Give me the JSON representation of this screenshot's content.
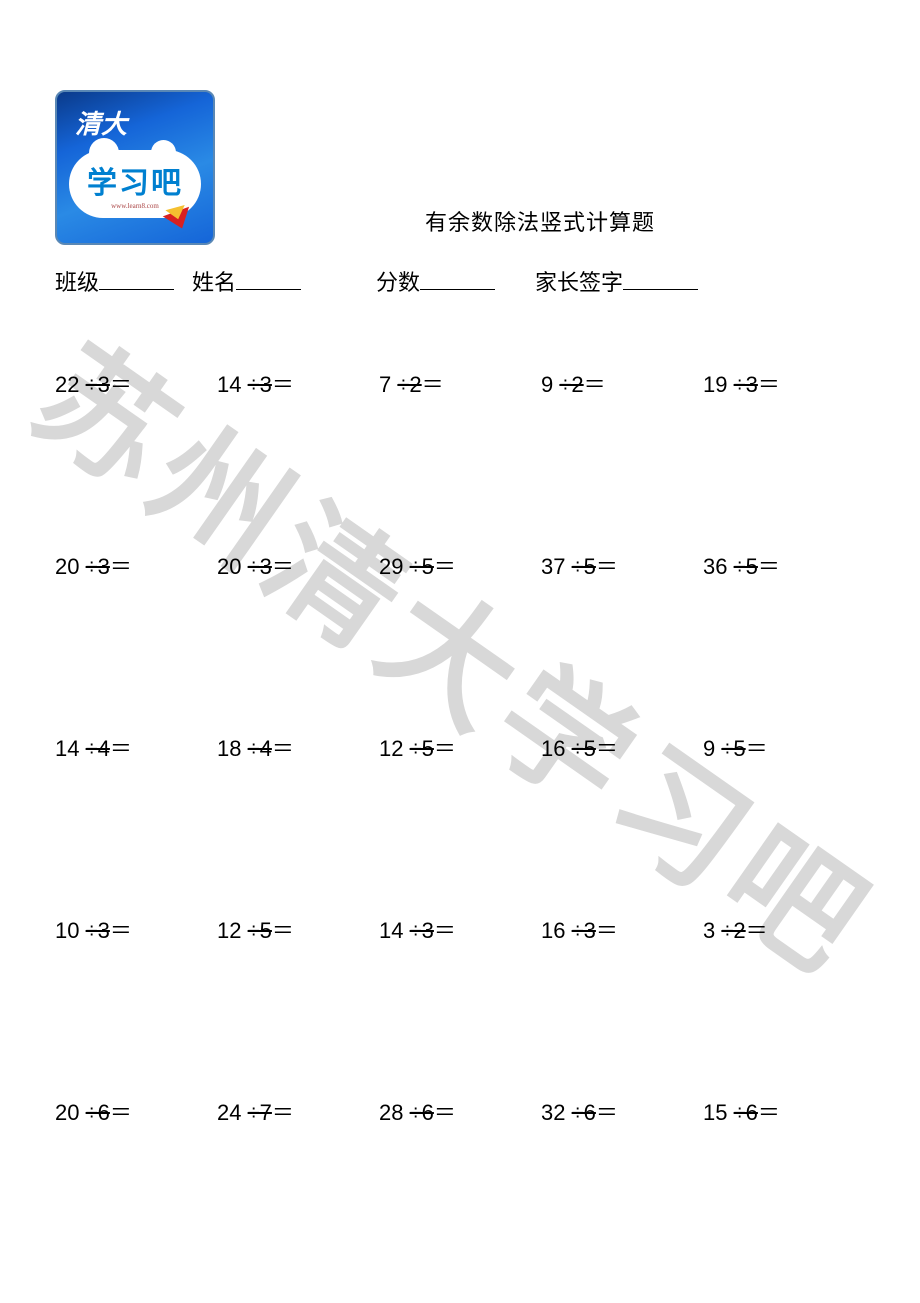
{
  "watermark": "苏州清大学习吧",
  "logo": {
    "top_text": "清大",
    "main_text": "学习吧",
    "sub_text": "www.learn8.com"
  },
  "title": "有余数除法竖式计算题",
  "info_fields": {
    "class_label": "班级",
    "name_label": "姓名",
    "score_label": "分数",
    "parent_sign_label": "家长签字"
  },
  "layout": {
    "underline_widths": {
      "class": 75,
      "name": 65,
      "score": 75,
      "parent": 75
    },
    "info_gaps": {
      "after_class": 18,
      "after_name": 75,
      "after_score": 40
    }
  },
  "problems": [
    [
      {
        "a": "22",
        "b": "3"
      },
      {
        "a": "14",
        "b": "3"
      },
      {
        "a": "7",
        "b": "2"
      },
      {
        "a": "9",
        "b": "2"
      },
      {
        "a": "19",
        "b": "3"
      }
    ],
    [
      {
        "a": "20",
        "b": "3"
      },
      {
        "a": "20",
        "b": "3"
      },
      {
        "a": "29",
        "b": "5"
      },
      {
        "a": "37",
        "b": "5"
      },
      {
        "a": "36",
        "b": "5"
      }
    ],
    [
      {
        "a": "14",
        "b": "4"
      },
      {
        "a": "18",
        "b": "4"
      },
      {
        "a": "12",
        "b": "5"
      },
      {
        "a": "16",
        "b": "5"
      },
      {
        "a": "9",
        "b": "5"
      }
    ],
    [
      {
        "a": "10",
        "b": "3"
      },
      {
        "a": "12",
        "b": "5"
      },
      {
        "a": "14",
        "b": "3"
      },
      {
        "a": "16",
        "b": "3"
      },
      {
        "a": "3",
        "b": "2"
      }
    ],
    [
      {
        "a": "20",
        "b": "6"
      },
      {
        "a": "24",
        "b": "7"
      },
      {
        "a": "28",
        "b": "6"
      },
      {
        "a": "32",
        "b": "6"
      },
      {
        "a": "15",
        "b": "6"
      }
    ]
  ],
  "styling": {
    "page_bg": "#ffffff",
    "text_color": "#000000",
    "watermark_color": "#d8d8d8",
    "watermark_fontsize": 130,
    "watermark_rotation": 35,
    "title_fontsize": 22,
    "info_fontsize": 22,
    "problem_fontsize": 22,
    "logo_bg_gradient": [
      "#0a3a8a",
      "#1565d8",
      "#2a8ae5",
      "#1565d8"
    ],
    "logo_text_color": "#0080d0",
    "logo_cloud_color": "#ffffff",
    "logo_arrow_red": "#d82020",
    "logo_arrow_yellow": "#f5c030"
  }
}
